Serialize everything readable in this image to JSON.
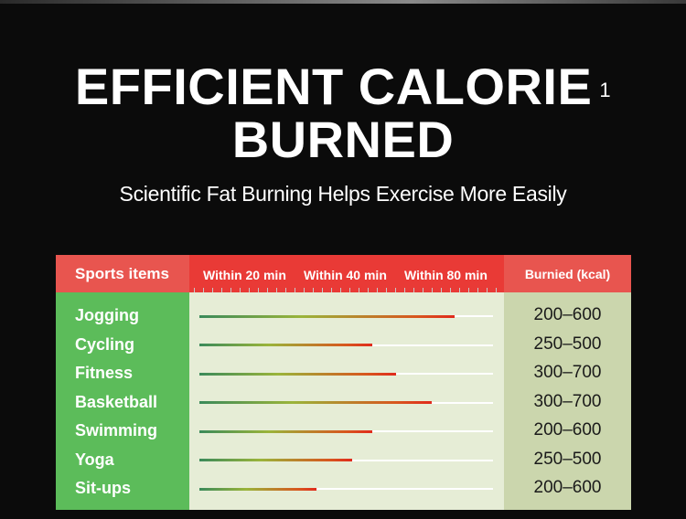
{
  "header": {
    "title_line1": "EFFICIENT CALORIE",
    "title_sup": "1",
    "title_line2": "BURNED",
    "subtitle": "Scientific Fat Burning Helps Exercise More Easily"
  },
  "chart_data": {
    "type": "table",
    "columns": [
      "Sports items",
      "Within 20 min",
      "Within 40 min",
      "Within 80 min",
      "Burnied (kcal)"
    ],
    "rows": [
      {
        "name": "Jogging",
        "burned": "200–600",
        "intensity": 0.87
      },
      {
        "name": "Cycling",
        "burned": "250–500",
        "intensity": 0.59
      },
      {
        "name": "Fitness",
        "burned": "300–700",
        "intensity": 0.67
      },
      {
        "name": "Basketball",
        "burned": "300–700",
        "intensity": 0.79
      },
      {
        "name": "Swimming",
        "burned": "200–600",
        "intensity": 0.59
      },
      {
        "name": "Yoga",
        "burned": "250–500",
        "intensity": 0.52
      },
      {
        "name": "Sit-ups",
        "burned": "200–600",
        "intensity": 0.4
      }
    ]
  },
  "colors": {
    "header_red": "#e93a36",
    "header_red_light": "#e8554f",
    "sports_green": "#5cbc5a",
    "mid_bg": "#e6edd6",
    "burned_bg": "#cbd6ad"
  }
}
